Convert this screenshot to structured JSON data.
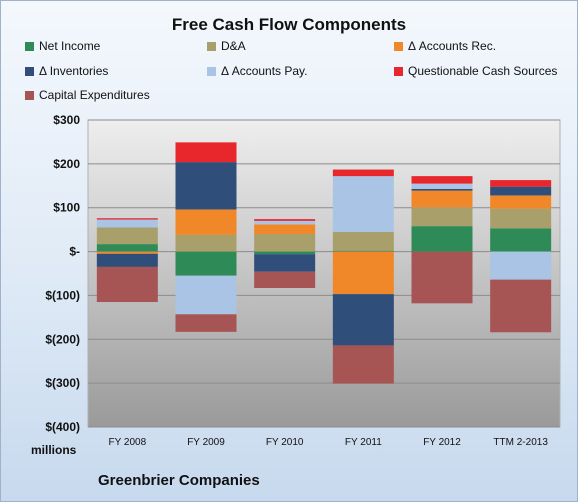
{
  "chart_data": {
    "type": "bar",
    "stacked": true,
    "title": "Free Cash Flow Components",
    "units_label": "millions",
    "company_label": "Greenbrier Companies",
    "categories": [
      "FY 2008",
      "FY 2009",
      "FY 2010",
      "FY 2011",
      "FY 2012",
      "TTM 2-2013"
    ],
    "ylim": [
      -400,
      300
    ],
    "yticks": [
      300,
      200,
      100,
      0,
      -100,
      -200,
      -300,
      -400
    ],
    "ytick_labels": [
      "$300",
      "$200",
      "$100",
      "$-",
      "$(100)",
      "$(200)",
      "$(300)",
      "$(400)"
    ],
    "grid": true,
    "legend_position": "top",
    "series": [
      {
        "name": "Net Income",
        "color": "#2e8b57",
        "values": [
          17,
          -55,
          -6,
          2,
          58,
          53
        ]
      },
      {
        "name": "D&A",
        "color": "#a89f6a",
        "values": [
          38,
          38,
          40,
          43,
          43,
          45
        ]
      },
      {
        "name": "Δ Accounts Rec.",
        "color": "#f0882a",
        "values": [
          -5,
          58,
          22,
          -97,
          38,
          30
        ]
      },
      {
        "name": "Δ Inventories",
        "color": "#2f4f7a",
        "values": [
          -30,
          108,
          -40,
          -117,
          4,
          20
        ]
      },
      {
        "name": "Δ Accounts Pay.",
        "color": "#a9c4e4",
        "values": [
          18,
          -88,
          8,
          127,
          12,
          -64
        ]
      },
      {
        "name": "Questionable Cash Sources",
        "color": "#e8272d",
        "values": [
          3,
          45,
          4,
          15,
          17,
          15
        ]
      },
      {
        "name": "Capital Expenditures",
        "color": "#a65454",
        "values": [
          -80,
          -40,
          -37,
          -87,
          -118,
          -120
        ]
      }
    ]
  }
}
